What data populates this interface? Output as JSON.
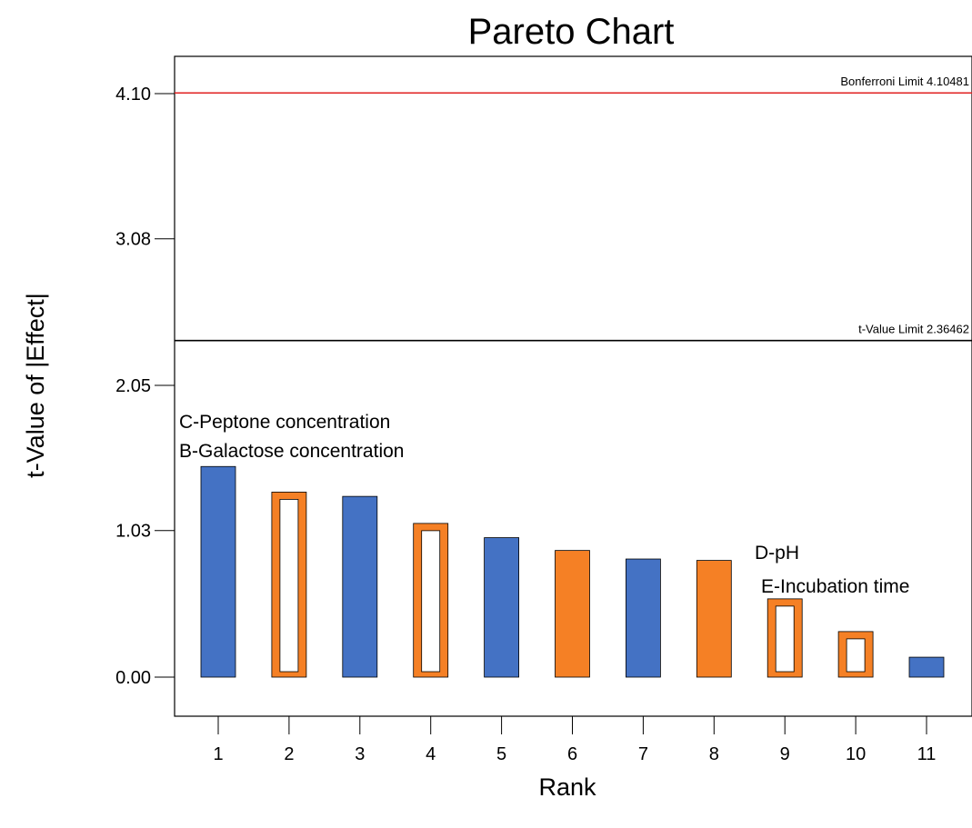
{
  "chart_data": {
    "type": "bar",
    "title": "Pareto Chart",
    "xlabel": "Rank",
    "ylabel": "t-Value of |Effect|",
    "categories": [
      "1",
      "2",
      "3",
      "4",
      "5",
      "6",
      "7",
      "8",
      "9",
      "10",
      "11"
    ],
    "values": [
      1.48,
      1.3,
      1.27,
      1.08,
      0.98,
      0.89,
      0.83,
      0.82,
      0.55,
      0.32,
      0.14
    ],
    "effect_sign": [
      "positive",
      "negative",
      "positive",
      "negative",
      "positive",
      "negative",
      "positive",
      "negative",
      "negative",
      "negative",
      "positive"
    ],
    "colors": {
      "positive": "#4472c4",
      "negative": "#f58025"
    },
    "yticks": [
      "0.00",
      "1.03",
      "2.05",
      "3.08",
      "4.10"
    ],
    "ylim": [
      0,
      4.1
    ],
    "limits": [
      {
        "label": "Bonferroni Limit 4.10481",
        "value": 4.10481,
        "color": "#e02020"
      },
      {
        "label": "t-Value Limit 2.36462",
        "value": 2.36462,
        "color": "#000000"
      }
    ],
    "annotations": [
      {
        "text": "C-Peptone concentration"
      },
      {
        "text": "B-Galactose concentration"
      },
      {
        "text": "D-pH"
      },
      {
        "text": "E-Incubation time"
      }
    ]
  }
}
